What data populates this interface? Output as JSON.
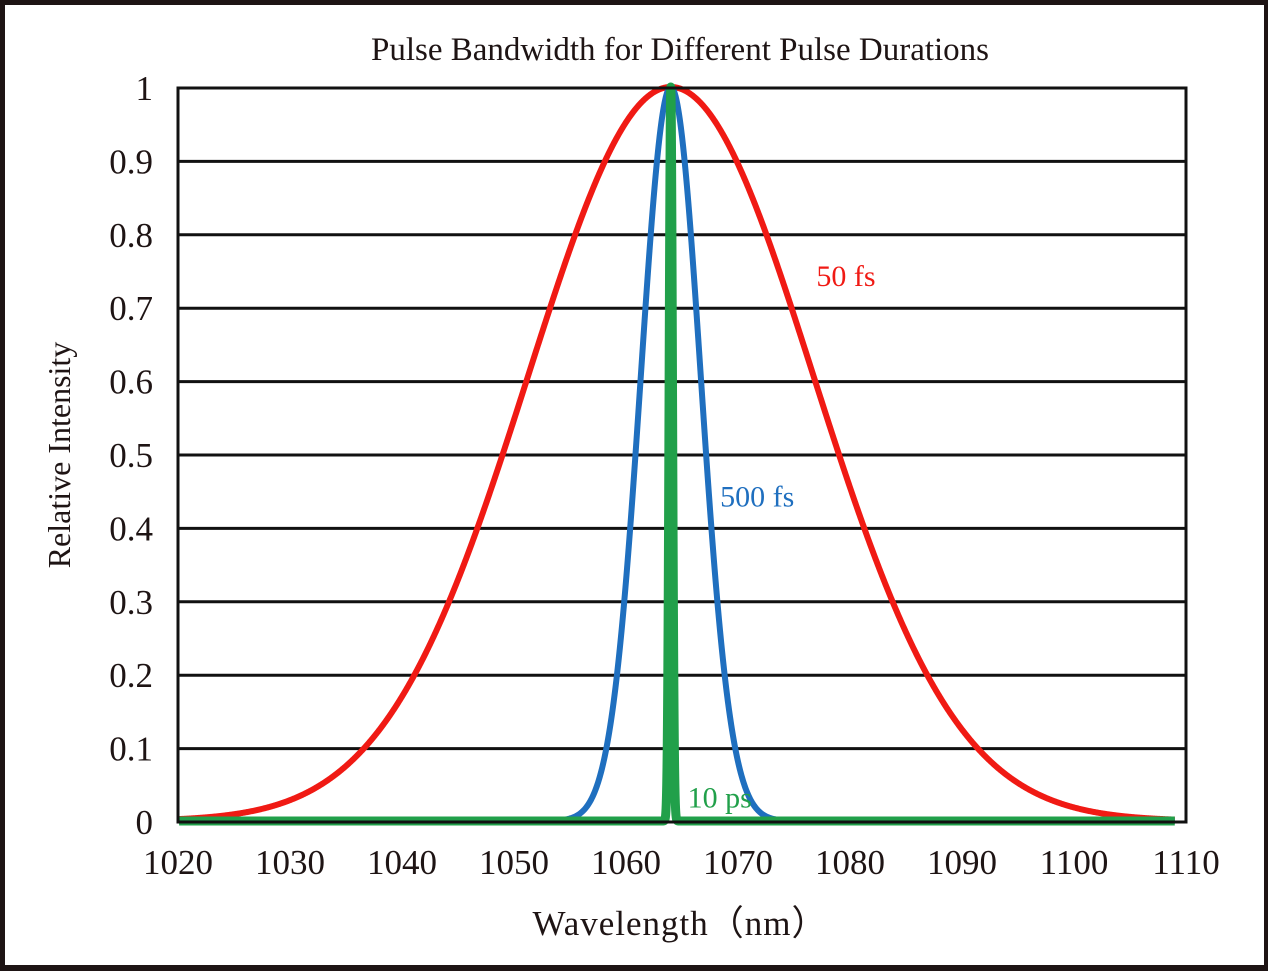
{
  "chart_data": {
    "type": "line",
    "title": "Pulse Bandwidth for Different Pulse Durations",
    "xlabel": "Wavelength（nm）",
    "ylabel": "Relative Intensity",
    "xlim": [
      1020,
      1110
    ],
    "ylim": [
      0,
      1
    ],
    "x_ticks": [
      1020,
      1030,
      1040,
      1050,
      1060,
      1070,
      1080,
      1090,
      1100,
      1110
    ],
    "x_tick_labels": [
      "1020",
      "1030",
      "1040",
      "1050",
      "1060",
      "1070",
      "1080",
      "1090",
      "1100",
      "1110"
    ],
    "y_ticks": [
      0,
      0.1,
      0.2,
      0.3,
      0.4,
      0.5,
      0.6,
      0.7,
      0.8,
      0.9,
      1
    ],
    "y_tick_labels": [
      "0",
      "0.1",
      "0.2",
      "0.3",
      "0.4",
      "0.5",
      "0.6",
      "0.7",
      "0.8",
      "0.9",
      "1"
    ],
    "grid": "horizontal",
    "legend": "inline-labels",
    "series": [
      {
        "name": "50 fs",
        "label": "50 fs",
        "color": "#f01a14",
        "shape": "gaussian",
        "center_nm": 1064,
        "fwhm_nm": 30,
        "peak": 1,
        "label_position": {
          "x": 1077,
          "y": 0.73
        }
      },
      {
        "name": "500 fs",
        "label": "500 fs",
        "color": "#1f6fbf",
        "shape": "gaussian",
        "center_nm": 1064,
        "fwhm_nm": 6.3,
        "peak": 1,
        "label_position": {
          "x": 1068.4,
          "y": 0.43
        }
      },
      {
        "name": "10 ps",
        "label": "10 ps",
        "color": "#21a04a",
        "shape": "gaussian",
        "center_nm": 1064,
        "fwhm_nm": 0.35,
        "peak": 1,
        "label_position": {
          "x": 1065.5,
          "y": 0.02
        }
      }
    ]
  }
}
